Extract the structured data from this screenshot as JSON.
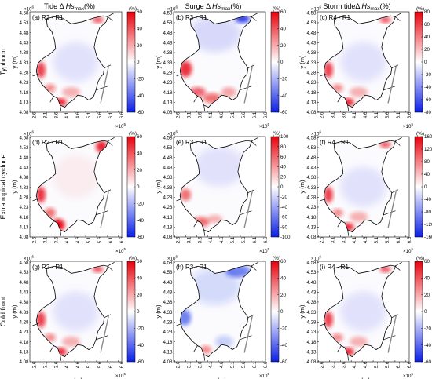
{
  "column_titles": [
    {
      "prefix": "Tide Δ ",
      "italic": "Hs",
      "sub": "max",
      "suffix": "(%)"
    },
    {
      "prefix": "Surge Δ ",
      "italic": "Hs",
      "sub": "max",
      "suffix": "(%)"
    },
    {
      "prefix": "Storm tideΔ ",
      "italic": "Hs",
      "sub": "max",
      "suffix": "(%)"
    }
  ],
  "row_labels": [
    "Typhoon",
    "Extratropical cyclone",
    "Cold front"
  ],
  "colors": {
    "positive": "#e8000b",
    "negative": "#0a1ee6",
    "neutral": "#ffffff",
    "coast": "#000000",
    "bridge": "#8a8a8a"
  },
  "chart_data": {
    "type": "heatmap",
    "layout": "3x3 small multiples",
    "x_axis": {
      "label": "x (m)",
      "ticks": [
        "2.6",
        "3.1",
        "3.6",
        "4.1",
        "4.6",
        "5.1",
        "5.6",
        "6.1",
        "6.6"
      ],
      "exponent_base": "×10",
      "exponent": "5",
      "range": [
        255000,
        675000
      ]
    },
    "y_axis": {
      "label": "y (m)",
      "ticks": [
        "4.58",
        "4.53",
        "4.48",
        "4.43",
        "4.38",
        "4.33",
        "4.28",
        "4.23",
        "4.18",
        "4.13",
        "4.08"
      ],
      "exponent_base": "×10",
      "exponent": "6",
      "range": [
        4080000,
        4585000
      ]
    },
    "colorbar_unit": "(%)",
    "panels": [
      {
        "label": "(a) R2 - R1",
        "row": "Typhoon",
        "col": "Tide",
        "clim": [
          -60,
          60
        ],
        "cbar_ticks": [
          "60",
          "40",
          "20",
          "0",
          "-20",
          "-40",
          "-60"
        ],
        "pattern": "tide"
      },
      {
        "label": "(b) R3 - R1",
        "row": "Typhoon",
        "col": "Surge",
        "clim": [
          -60,
          60
        ],
        "cbar_ticks": [
          "60",
          "40",
          "20",
          "0",
          "-20",
          "-40",
          "-60"
        ],
        "pattern": "surge"
      },
      {
        "label": "(c) R4 - R1",
        "row": "Typhoon",
        "col": "Storm tide",
        "clim": [
          -80,
          80
        ],
        "cbar_ticks": [
          "80",
          "60",
          "40",
          "20",
          "0",
          "-20",
          "-40",
          "-60",
          "-80"
        ],
        "pattern": "tide"
      },
      {
        "label": "(d) R2 - R1",
        "row": "Extratropical cyclone",
        "col": "Tide",
        "clim": [
          -60,
          60
        ],
        "cbar_ticks": [
          "60",
          "40",
          "20",
          "0",
          "-20",
          "-40",
          "-60"
        ],
        "pattern": "tide_strong"
      },
      {
        "label": "(e) R3 - R1",
        "row": "Extratropical cyclone",
        "col": "Surge",
        "clim": [
          -100,
          100
        ],
        "cbar_ticks": [
          "100",
          "80",
          "60",
          "40",
          "20",
          "0",
          "-20",
          "-40",
          "-60",
          "-80",
          "-100"
        ],
        "pattern": "surge_weak"
      },
      {
        "label": "(f) R4 - R1",
        "row": "Extratropical cyclone",
        "col": "Storm tide",
        "clim": [
          -160,
          160
        ],
        "cbar_ticks": [
          "160",
          "120",
          "80",
          "40",
          "0",
          "-40",
          "-80",
          "-120",
          "-160"
        ],
        "pattern": "tide"
      },
      {
        "label": "(g) R2 - R1",
        "row": "Cold front",
        "col": "Tide",
        "clim": [
          -60,
          60
        ],
        "cbar_ticks": [
          "60",
          "40",
          "20",
          "0",
          "-20",
          "-40",
          "-60"
        ],
        "pattern": "tide"
      },
      {
        "label": "(h) R3 - R1",
        "row": "Cold front",
        "col": "Surge",
        "clim": [
          -60,
          60
        ],
        "cbar_ticks": [
          "60",
          "40",
          "20",
          "0",
          "-20",
          "-40",
          "-60"
        ],
        "pattern": "surge_cold"
      },
      {
        "label": "(i) R4 - R1",
        "row": "Cold front",
        "col": "Storm tide",
        "clim": [
          -60,
          60
        ],
        "cbar_ticks": [
          "60",
          "40",
          "20",
          "0",
          "-20",
          "-40",
          "-60"
        ],
        "pattern": "tide"
      }
    ]
  }
}
